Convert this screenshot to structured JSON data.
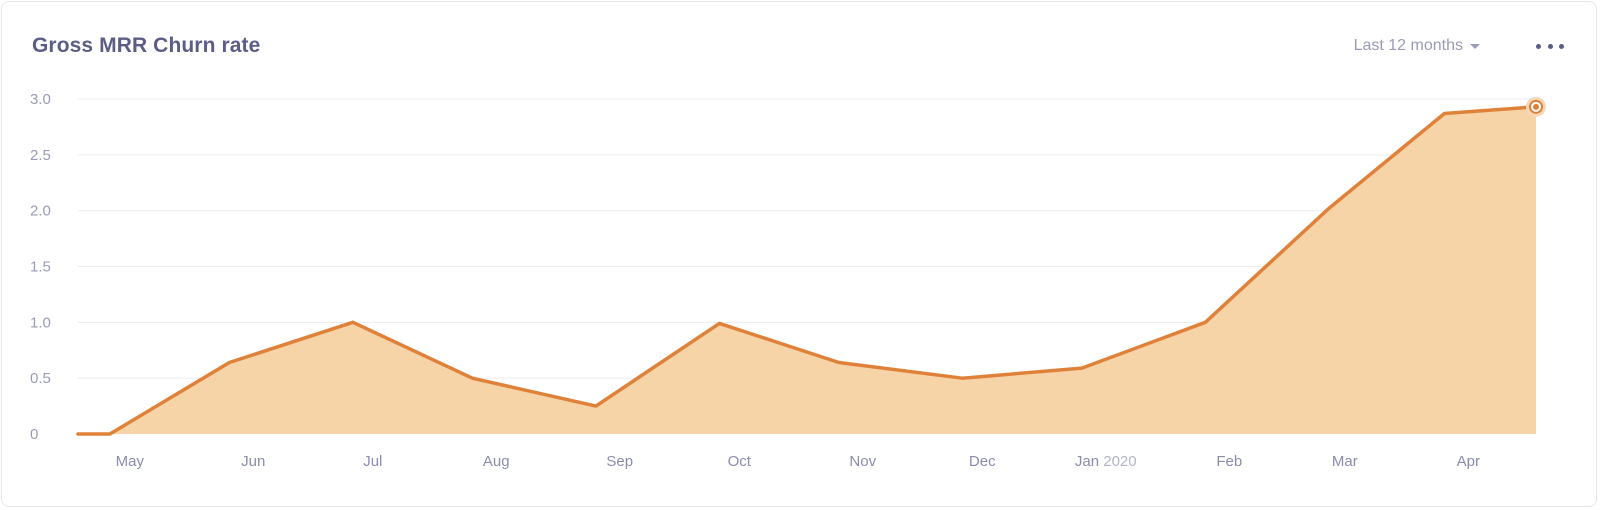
{
  "card": {
    "title": "Gross MRR Churn rate",
    "range_label": "Last 12 months",
    "range_icon": "caret-down-icon",
    "menu_icon": "more-horizontal-icon"
  },
  "colors": {
    "line": "#e0813a",
    "fill": "#f7d3a8",
    "grid": "#ececf1",
    "title": "#5b5d86",
    "muted": "#9a9bb5"
  },
  "chart_data": {
    "type": "area",
    "title": "Gross MRR Churn rate",
    "xlabel": "",
    "ylabel": "",
    "ylim": [
      0,
      3.0
    ],
    "yticks": [
      {
        "value": 0,
        "label": "0"
      },
      {
        "value": 0.5,
        "label": "0.5"
      },
      {
        "value": 1.0,
        "label": "1.0"
      },
      {
        "value": 1.5,
        "label": "1.5"
      },
      {
        "value": 2.0,
        "label": "2.0"
      },
      {
        "value": 2.5,
        "label": "2.5"
      },
      {
        "value": 3.0,
        "label": "3.0"
      }
    ],
    "xticks": [
      {
        "date": "2019-05-01",
        "label": "May",
        "year": ""
      },
      {
        "date": "2019-06-01",
        "label": "Jun",
        "year": ""
      },
      {
        "date": "2019-07-01",
        "label": "Jul",
        "year": ""
      },
      {
        "date": "2019-08-01",
        "label": "Aug",
        "year": ""
      },
      {
        "date": "2019-09-01",
        "label": "Sep",
        "year": ""
      },
      {
        "date": "2019-10-01",
        "label": "Oct",
        "year": ""
      },
      {
        "date": "2019-11-01",
        "label": "Nov",
        "year": ""
      },
      {
        "date": "2019-12-01",
        "label": "Dec",
        "year": ""
      },
      {
        "date": "2020-01-01",
        "label": "Jan",
        "year": "2020"
      },
      {
        "date": "2020-02-01",
        "label": "Feb",
        "year": ""
      },
      {
        "date": "2020-03-01",
        "label": "Mar",
        "year": ""
      },
      {
        "date": "2020-04-01",
        "label": "Apr",
        "year": ""
      }
    ],
    "grid": true,
    "legend": "none",
    "series": [
      {
        "points": [
          {
            "x": "2019-04-18",
            "y": 0.0
          },
          {
            "x": "2019-04-26",
            "y": 0.0
          },
          {
            "x": "2019-05-26",
            "y": 0.64
          },
          {
            "x": "2019-06-26",
            "y": 1.0
          },
          {
            "x": "2019-07-26",
            "y": 0.5
          },
          {
            "x": "2019-08-26",
            "y": 0.25
          },
          {
            "x": "2019-09-26",
            "y": 0.99
          },
          {
            "x": "2019-10-26",
            "y": 0.64
          },
          {
            "x": "2019-11-26",
            "y": 0.5
          },
          {
            "x": "2019-12-26",
            "y": 0.59
          },
          {
            "x": "2020-01-26",
            "y": 1.0
          },
          {
            "x": "2020-02-26",
            "y": 2.02
          },
          {
            "x": "2020-03-26",
            "y": 2.87
          },
          {
            "x": "2020-04-18",
            "y": 2.93
          }
        ],
        "highlight_last": true
      }
    ]
  }
}
